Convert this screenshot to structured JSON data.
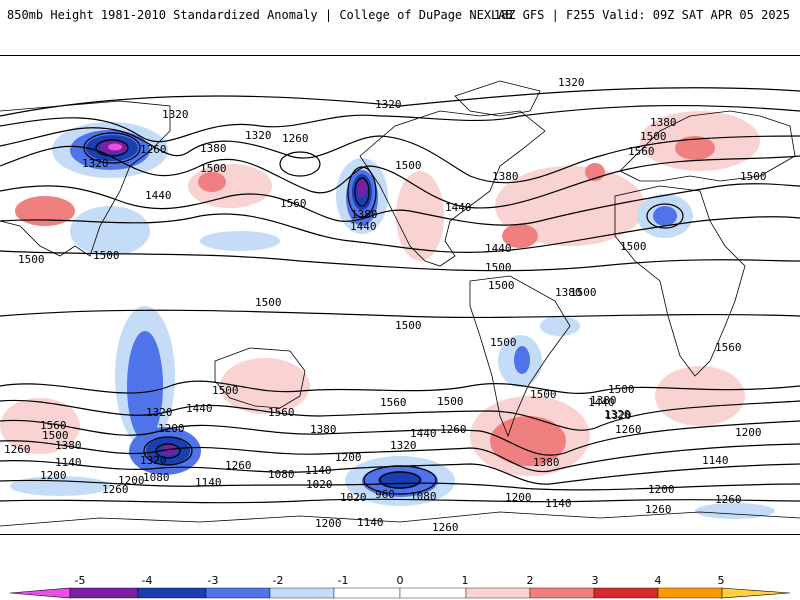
{
  "header": {
    "title_left": "850mb Height 1981-2010 Standardized Anomaly | College of DuPage NEXLAB",
    "title_right": "18Z GFS | F255 Valid: 09Z SAT APR 05 2025"
  },
  "colors": {
    "neg5": "#e94fe6",
    "neg4": "#7b1fa2",
    "neg3": "#1a3fb0",
    "neg2": "#4f73e8",
    "neg1": "#c4dcf8",
    "zero": "#ffffff",
    "pos1": "#f9d2d2",
    "pos2": "#f08080",
    "pos3": "#d42a2a",
    "pos4": "#ff9900",
    "pos5": "#ffd040"
  },
  "colorbar": {
    "ticks": [
      "-5",
      "-4",
      "-3",
      "-2",
      "-1",
      "0",
      "1",
      "2",
      "3",
      "4",
      "5"
    ]
  },
  "contour_labels": [
    {
      "text": "1320"
    },
    {
      "text": "1320"
    },
    {
      "text": "1320"
    },
    {
      "text": "1320"
    },
    {
      "text": "1320"
    },
    {
      "text": "1260"
    },
    {
      "text": "1260"
    },
    {
      "text": "1380"
    },
    {
      "text": "1380"
    },
    {
      "text": "1500"
    },
    {
      "text": "1500"
    },
    {
      "text": "1500"
    },
    {
      "text": "1440"
    },
    {
      "text": "1560"
    },
    {
      "text": "1380"
    },
    {
      "text": "1560"
    },
    {
      "text": "1500"
    },
    {
      "text": "1380"
    },
    {
      "text": "1440"
    },
    {
      "text": "1500"
    },
    {
      "text": "1440"
    },
    {
      "text": "1440"
    },
    {
      "text": "1380"
    },
    {
      "text": "1500"
    },
    {
      "text": "1500"
    },
    {
      "text": "1500"
    },
    {
      "text": "1500"
    },
    {
      "text": "1500"
    },
    {
      "text": "1500"
    },
    {
      "text": "1500"
    },
    {
      "text": "1500"
    },
    {
      "text": "1560"
    },
    {
      "text": "1500"
    },
    {
      "text": "1560"
    },
    {
      "text": "1500"
    },
    {
      "text": "1560"
    },
    {
      "text": "1440"
    },
    {
      "text": "1500"
    },
    {
      "text": "1320"
    },
    {
      "text": "1560"
    },
    {
      "text": "1500"
    },
    {
      "text": "1380"
    },
    {
      "text": "1260"
    },
    {
      "text": "1200"
    },
    {
      "text": "1320"
    },
    {
      "text": "1260"
    },
    {
      "text": "1140"
    },
    {
      "text": "1440"
    },
    {
      "text": "1380"
    },
    {
      "text": "1320"
    },
    {
      "text": "1260"
    },
    {
      "text": "1200"
    },
    {
      "text": "1140"
    },
    {
      "text": "1080"
    },
    {
      "text": "1020"
    },
    {
      "text": "1140"
    },
    {
      "text": "1080"
    },
    {
      "text": "1020"
    },
    {
      "text": "960"
    },
    {
      "text": "1080"
    },
    {
      "text": "1200"
    },
    {
      "text": "1140"
    },
    {
      "text": "1260"
    },
    {
      "text": "1260"
    },
    {
      "text": "1200"
    },
    {
      "text": "1320"
    },
    {
      "text": "1260"
    },
    {
      "text": "1200"
    },
    {
      "text": "1140"
    },
    {
      "text": "1320"
    },
    {
      "text": "1380"
    },
    {
      "text": "1440"
    },
    {
      "text": "1500"
    },
    {
      "text": "1260"
    },
    {
      "text": "1200"
    },
    {
      "text": "1140"
    },
    {
      "text": "1380"
    },
    {
      "text": "1200"
    },
    {
      "text": "1200"
    },
    {
      "text": "1260"
    }
  ]
}
